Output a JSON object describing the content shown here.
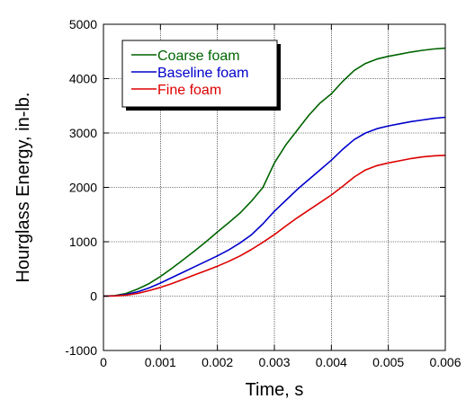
{
  "chart_data": {
    "type": "line",
    "title": "",
    "xlabel": "Time, s",
    "ylabel": "Hourglass Energy, in-lb.",
    "xlim": [
      0,
      0.006
    ],
    "ylim": [
      -1000,
      5000
    ],
    "x_ticks": [
      0,
      0.001,
      0.002,
      0.003,
      0.004,
      0.005,
      0.006
    ],
    "y_ticks": [
      -1000,
      0,
      1000,
      2000,
      3000,
      4000,
      5000
    ],
    "x_tick_labels": [
      "0",
      "0.001",
      "0.002",
      "0.003",
      "0.004",
      "0.005",
      "0.006"
    ],
    "y_tick_labels": [
      "-1000",
      "0",
      "1000",
      "2000",
      "3000",
      "4000",
      "5000"
    ],
    "grid": true,
    "legend_position": "top-left",
    "series": [
      {
        "name": "Coarse foam",
        "color": "#006400",
        "x": [
          0,
          0.0002,
          0.0004,
          0.0006,
          0.0008,
          0.001,
          0.0012,
          0.0014,
          0.0016,
          0.0018,
          0.002,
          0.0022,
          0.0024,
          0.0026,
          0.0028,
          0.003,
          0.0032,
          0.0034,
          0.0036,
          0.0038,
          0.004,
          0.0042,
          0.0044,
          0.0046,
          0.0048,
          0.005,
          0.0052,
          0.0054,
          0.0056,
          0.0058,
          0.006
        ],
        "y": [
          0,
          10,
          50,
          130,
          230,
          360,
          510,
          670,
          830,
          1000,
          1180,
          1350,
          1530,
          1750,
          2000,
          2450,
          2780,
          3050,
          3320,
          3550,
          3720,
          3950,
          4150,
          4280,
          4360,
          4410,
          4450,
          4490,
          4520,
          4545,
          4560
        ]
      },
      {
        "name": "Baseline foam",
        "color": "#0000CC",
        "x": [
          0,
          0.0002,
          0.0004,
          0.0006,
          0.0008,
          0.001,
          0.0012,
          0.0014,
          0.0016,
          0.0018,
          0.002,
          0.0022,
          0.0024,
          0.0026,
          0.0028,
          0.003,
          0.0032,
          0.0034,
          0.0036,
          0.0038,
          0.004,
          0.0042,
          0.0044,
          0.0046,
          0.0048,
          0.005,
          0.0052,
          0.0054,
          0.0056,
          0.0058,
          0.006
        ],
        "y": [
          0,
          5,
          30,
          80,
          150,
          240,
          340,
          440,
          540,
          640,
          740,
          850,
          980,
          1130,
          1330,
          1560,
          1760,
          1960,
          2140,
          2320,
          2500,
          2700,
          2880,
          3000,
          3080,
          3130,
          3170,
          3210,
          3240,
          3270,
          3290
        ]
      },
      {
        "name": "Fine foam",
        "color": "#DD0000",
        "x": [
          0,
          0.0002,
          0.0004,
          0.0006,
          0.0008,
          0.001,
          0.0012,
          0.0014,
          0.0016,
          0.0018,
          0.002,
          0.0022,
          0.0024,
          0.0026,
          0.0028,
          0.003,
          0.0032,
          0.0034,
          0.0036,
          0.0038,
          0.004,
          0.0042,
          0.0044,
          0.0046,
          0.0048,
          0.005,
          0.0052,
          0.0054,
          0.0056,
          0.0058,
          0.006
        ],
        "y": [
          0,
          3,
          18,
          50,
          100,
          160,
          230,
          310,
          390,
          470,
          550,
          640,
          740,
          860,
          990,
          1130,
          1290,
          1440,
          1580,
          1720,
          1860,
          2020,
          2190,
          2320,
          2400,
          2450,
          2490,
          2530,
          2560,
          2580,
          2590
        ]
      }
    ]
  }
}
